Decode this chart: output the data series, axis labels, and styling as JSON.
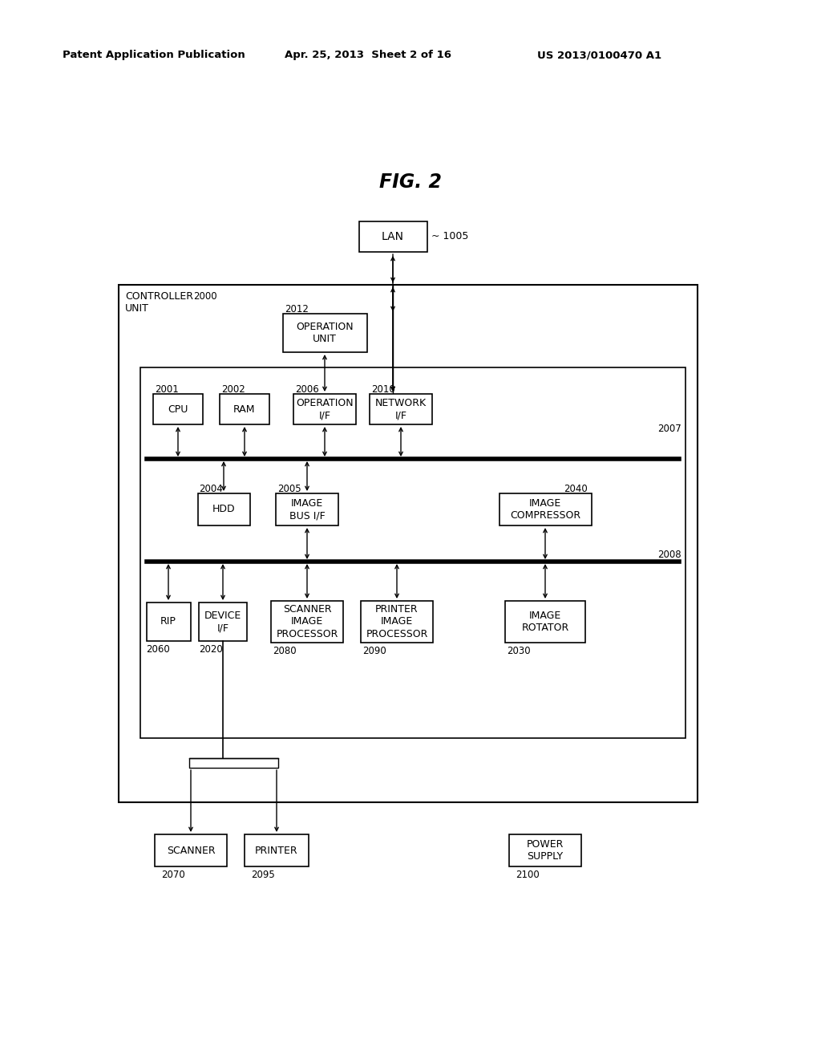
{
  "header_left": "Patent Application Publication",
  "header_mid": "Apr. 25, 2013  Sheet 2 of 16",
  "header_right": "US 2013/0100470 A1",
  "title": "FIG. 2",
  "bg_color": "#ffffff"
}
